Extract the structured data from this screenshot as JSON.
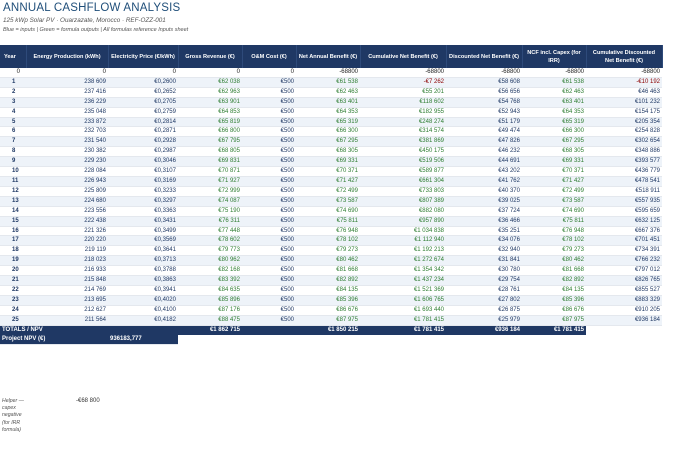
{
  "header": {
    "title": "ANNUAL CASHFLOW ANALYSIS",
    "subtitle": "125 kWp Solar PV  ·  Ouarzazate, Morocco  ·  REF-OZZ-001",
    "legend": "Blue = inputs  |  Green = formula outputs  |  All formulas reference Inputs sheet"
  },
  "columns": [
    "Year",
    "Energy Production (kWh)",
    "Electricity Price (€/kWh)",
    "Gross Revenue (€)",
    "O&M Cost (€)",
    "Net Annual Benefit (€)",
    "Cumulative Net Benefit (€)",
    "Discounted Net Benefit (€)",
    "NCF incl. Capex (for IRR)",
    "Cumulative Discounted Net Benefit (€)"
  ],
  "rows": [
    [
      "0",
      "0",
      "0",
      "0",
      "0",
      "-68800",
      "-68800",
      "-68800",
      "-68800",
      "-68800"
    ],
    [
      "1",
      "238 609",
      "€0,2600",
      "€62 038",
      "€500",
      "€61 538",
      "-€7 262",
      "€58 608",
      "€61 538",
      "-€10 192"
    ],
    [
      "2",
      "237 416",
      "€0,2652",
      "€62 963",
      "€500",
      "€62 463",
      "€55 201",
      "€56 656",
      "€62 463",
      "€46 463"
    ],
    [
      "3",
      "236 229",
      "€0,2705",
      "€63 901",
      "€500",
      "€63 401",
      "€118 602",
      "€54 768",
      "€63 401",
      "€101 232"
    ],
    [
      "4",
      "235 048",
      "€0,2759",
      "€64 853",
      "€500",
      "€64 353",
      "€182 955",
      "€52 943",
      "€64 353",
      "€154 175"
    ],
    [
      "5",
      "233 872",
      "€0,2814",
      "€65 819",
      "€500",
      "€65 319",
      "€248 274",
      "€51 179",
      "€65 319",
      "€205 354"
    ],
    [
      "6",
      "232 703",
      "€0,2871",
      "€66 800",
      "€500",
      "€66 300",
      "€314 574",
      "€49 474",
      "€66 300",
      "€254 828"
    ],
    [
      "7",
      "231 540",
      "€0,2928",
      "€67 795",
      "€500",
      "€67 295",
      "€381 869",
      "€47 826",
      "€67 295",
      "€302 654"
    ],
    [
      "8",
      "230 382",
      "€0,2987",
      "€68 805",
      "€500",
      "€68 305",
      "€450 175",
      "€46 232",
      "€68 305",
      "€348 886"
    ],
    [
      "9",
      "229 230",
      "€0,3046",
      "€69 831",
      "€500",
      "€69 331",
      "€519 506",
      "€44 691",
      "€69 331",
      "€393 577"
    ],
    [
      "10",
      "228 084",
      "€0,3107",
      "€70 871",
      "€500",
      "€70 371",
      "€589 877",
      "€43 202",
      "€70 371",
      "€436 779"
    ],
    [
      "11",
      "226 943",
      "€0,3169",
      "€71 927",
      "€500",
      "€71 427",
      "€661 304",
      "€41 762",
      "€71 427",
      "€478 541"
    ],
    [
      "12",
      "225 809",
      "€0,3233",
      "€72 999",
      "€500",
      "€72 499",
      "€733 803",
      "€40 370",
      "€72 499",
      "€518 911"
    ],
    [
      "13",
      "224 680",
      "€0,3297",
      "€74 087",
      "€500",
      "€73 587",
      "€807 389",
      "€39 025",
      "€73 587",
      "€557 935"
    ],
    [
      "14",
      "223 556",
      "€0,3363",
      "€75 190",
      "€500",
      "€74 690",
      "€882 080",
      "€37 724",
      "€74 690",
      "€595 659"
    ],
    [
      "15",
      "222 438",
      "€0,3431",
      "€76 311",
      "€500",
      "€75 811",
      "€957 890",
      "€36 466",
      "€75 811",
      "€632 125"
    ],
    [
      "16",
      "221 326",
      "€0,3499",
      "€77 448",
      "€500",
      "€76 948",
      "€1 034 838",
      "€35 251",
      "€76 948",
      "€667 376"
    ],
    [
      "17",
      "220 220",
      "€0,3569",
      "€78 602",
      "€500",
      "€78 102",
      "€1 112 940",
      "€34 076",
      "€78 102",
      "€701 451"
    ],
    [
      "18",
      "219 119",
      "€0,3641",
      "€79 773",
      "€500",
      "€79 273",
      "€1 192 213",
      "€32 940",
      "€79 273",
      "€734 391"
    ],
    [
      "19",
      "218 023",
      "€0,3713",
      "€80 962",
      "€500",
      "€80 462",
      "€1 272 674",
      "€31 841",
      "€80 462",
      "€766 232"
    ],
    [
      "20",
      "216 933",
      "€0,3788",
      "€82 168",
      "€500",
      "€81 668",
      "€1 354 342",
      "€30 780",
      "€81 668",
      "€797 012"
    ],
    [
      "21",
      "215 848",
      "€0,3863",
      "€83 392",
      "€500",
      "€82 892",
      "€1 437 234",
      "€29 754",
      "€82 892",
      "€826 765"
    ],
    [
      "22",
      "214 769",
      "€0,3941",
      "€84 635",
      "€500",
      "€84 135",
      "€1 521 369",
      "€28 761",
      "€84 135",
      "€855 527"
    ],
    [
      "23",
      "213 695",
      "€0,4020",
      "€85 896",
      "€500",
      "€85 396",
      "€1 606 765",
      "€27 802",
      "€85 396",
      "€883 329"
    ],
    [
      "24",
      "212 627",
      "€0,4100",
      "€87 176",
      "€500",
      "€86 676",
      "€1 693 440",
      "€26 875",
      "€86 676",
      "€910 205"
    ],
    [
      "25",
      "211 564",
      "€0,4182",
      "€88 475",
      "€500",
      "€87 975",
      "€1 781 415",
      "€25 979",
      "€87 975",
      "€936 184"
    ]
  ],
  "totals": {
    "label": "TOTALS / NPV",
    "gross_revenue": "€1 862 715",
    "net_annual_benefit": "€1 850 215",
    "cumulative": "€1 781 415",
    "discounted": "€936 184",
    "ncf": "€1 781 415"
  },
  "npv": {
    "label": "Project NPV (€)",
    "value": "936183,777"
  },
  "helper": {
    "label": "Helper — capex negative (for IRR formula)",
    "value": "-€68 800"
  }
}
